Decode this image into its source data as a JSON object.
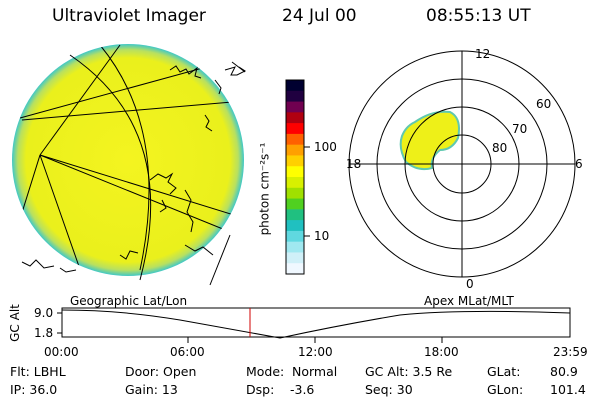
{
  "header": {
    "instrument": "Ultraviolet Imager",
    "date": "24 Jul 00",
    "time": "08:55:13 UT"
  },
  "colorbar": {
    "unit_label": "photon cm⁻²s⁻¹",
    "ticks": [
      "100",
      "10"
    ],
    "colors": [
      "#000030",
      "#200040",
      "#700050",
      "#b00010",
      "#ff0000",
      "#ff6000",
      "#ffa000",
      "#ffd000",
      "#ffff00",
      "#d8f000",
      "#a0e000",
      "#50d020",
      "#20c080",
      "#20c0c0",
      "#60d8e0",
      "#a0e8f0",
      "#d0f0f8",
      "#f0f8ff"
    ]
  },
  "globe_view": {
    "label": "Geographic Lat/Lon",
    "disk_color": "#f0f020"
  },
  "polar_view": {
    "label": "Apex MLat/MLT",
    "mlt_labels": [
      "12",
      "18",
      "6",
      "0"
    ],
    "mlat_labels": [
      "60",
      "70",
      "80"
    ],
    "oval_color": "#f0f020"
  },
  "altitude_plot": {
    "ylabel": "GC Alt",
    "yticks": [
      "9.0",
      "1.8"
    ],
    "xticks": [
      "00:00",
      "06:00",
      "12:00",
      "18:00",
      "23:59"
    ],
    "marker_color": "#d00000"
  },
  "status": {
    "flt": "Flt: LBHL",
    "ip": "IP: 36.0",
    "door": "Door: Open",
    "gain": "Gain: 13",
    "mode_label": "Mode:",
    "mode_value": "Normal",
    "dsp_label": "Dsp:",
    "dsp_value": "-3.6",
    "gcalt": "GC Alt: 3.5 Re",
    "seq": "Seq: 30",
    "glat_label": "GLat:",
    "glat_value": "80.9",
    "glon_label": "GLon:",
    "glon_value": "101.4"
  }
}
